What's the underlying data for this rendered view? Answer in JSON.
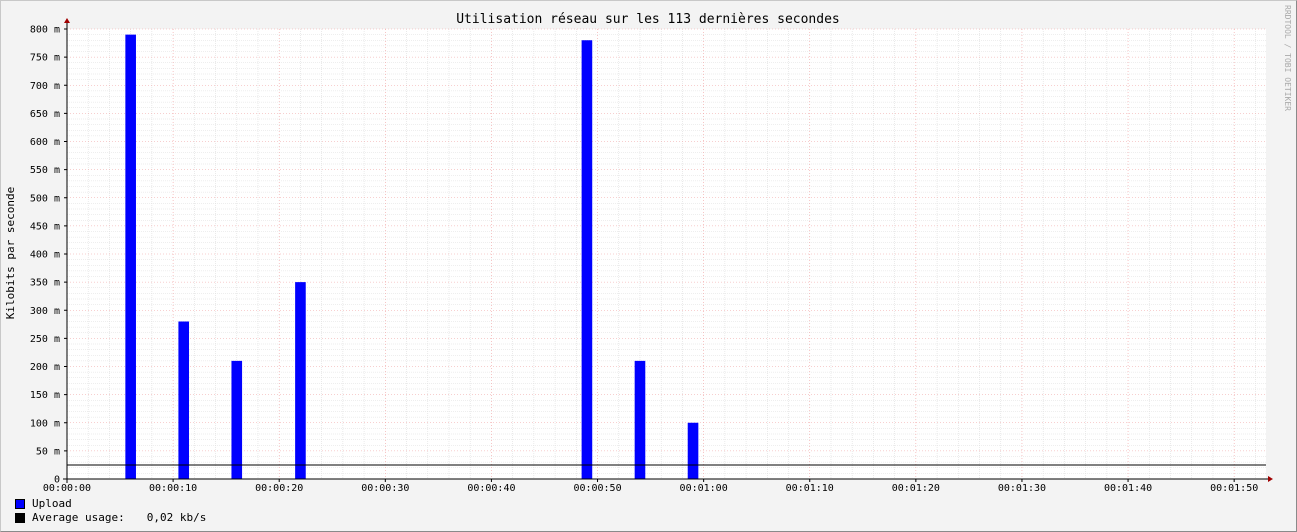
{
  "chart_data": {
    "type": "bar",
    "title": "Utilisation réseau sur les 113 dernières secondes",
    "ylabel": "Kilobits par seconde",
    "xlabel": "",
    "watermark": "RRDTOOL / TOBI OETIKER",
    "xlim_seconds": [
      0,
      113
    ],
    "ylim": [
      0,
      800
    ],
    "x_tick_labels": [
      "00:00:00",
      "00:00:10",
      "00:00:20",
      "00:00:30",
      "00:00:40",
      "00:00:50",
      "00:01:00",
      "00:01:10",
      "00:01:20",
      "00:01:30",
      "00:01:40",
      "00:01:50"
    ],
    "y_tick_labels": [
      "0",
      "50 m",
      "100 m",
      "150 m",
      "200 m",
      "250 m",
      "300 m",
      "350 m",
      "400 m",
      "450 m",
      "500 m",
      "550 m",
      "600 m",
      "650 m",
      "700 m",
      "750 m",
      "800 m"
    ],
    "series": [
      {
        "name": "Upload",
        "color": "#0000ff",
        "points": [
          {
            "t": 6,
            "value": 790
          },
          {
            "t": 11,
            "value": 280
          },
          {
            "t": 16,
            "value": 210
          },
          {
            "t": 22,
            "value": 350
          },
          {
            "t": 49,
            "value": 780
          },
          {
            "t": 54,
            "value": 210
          },
          {
            "t": 59,
            "value": 100
          }
        ]
      }
    ],
    "average_line_value": 25,
    "grid": true,
    "legend_position": "bottom-left"
  },
  "legend": {
    "upload_label": "Upload",
    "upload_color": "#0000ff",
    "average_label": "Average usage:",
    "average_value": "0,02 kb/s",
    "average_color": "#000000"
  }
}
